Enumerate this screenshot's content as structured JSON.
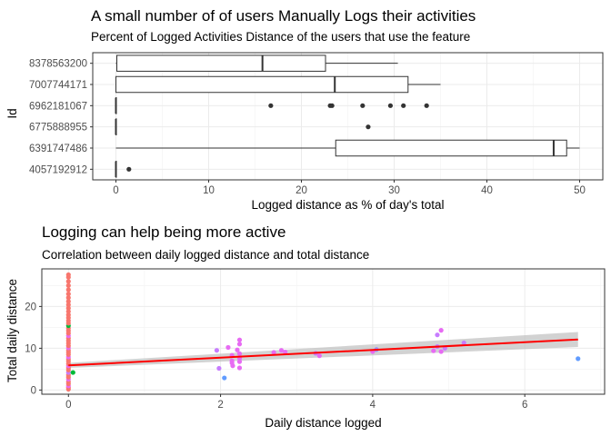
{
  "chart_data": [
    {
      "type": "boxplot",
      "orientation": "horizontal",
      "title": "A small number of of users Manually Logs their activities",
      "subtitle": "Percent of Logged Activities Distance of the users that use the feature",
      "xlabel": "Logged distance as % of day's total",
      "ylabel": "Id",
      "xlim": [
        -2.5,
        52.5
      ],
      "xticks": [
        "0",
        "10",
        "20",
        "30",
        "40",
        "50"
      ],
      "xtick_values": [
        0,
        10,
        20,
        30,
        40,
        50
      ],
      "grid": true,
      "categories": [
        "4057192912",
        "6391747486",
        "6775888955",
        "6962181067",
        "7007744171",
        "8378563200"
      ],
      "boxes": [
        {
          "id": "4057192912",
          "min": 0,
          "q1": 0,
          "median": 0,
          "q3": 0,
          "max": 0,
          "outliers": [
            1.4
          ]
        },
        {
          "id": "6391747486",
          "min": 0,
          "q1": 23.7,
          "median": 47.2,
          "q3": 48.6,
          "max": 50.0,
          "outliers": []
        },
        {
          "id": "6775888955",
          "min": 0,
          "q1": 0,
          "median": 0,
          "q3": 0,
          "max": 0,
          "outliers": [
            27.2
          ]
        },
        {
          "id": "6962181067",
          "min": 0,
          "q1": 0,
          "median": 0,
          "q3": 0,
          "max": 0,
          "outliers": [
            16.7,
            23.1,
            23.3,
            26.6,
            29.6,
            31.0,
            33.5
          ]
        },
        {
          "id": "7007744171",
          "min": 0,
          "q1": 0,
          "median": 23.6,
          "q3": 31.5,
          "max": 35.0,
          "outliers": []
        },
        {
          "id": "8378563200",
          "min": 0,
          "q1": 0.1,
          "median": 15.8,
          "q3": 22.6,
          "max": 30.4,
          "outliers": []
        }
      ]
    },
    {
      "type": "scatter",
      "title": "Logging can help being more active",
      "subtitle": "Correlation between daily logged distance and total distance",
      "xlabel": "Daily distance logged",
      "ylabel": "Total daily distance",
      "xlim": [
        -0.35,
        7.05
      ],
      "ylim": [
        -1.0,
        29.0
      ],
      "xticks": [
        "0",
        "2",
        "4",
        "6"
      ],
      "xtick_values": [
        0,
        2,
        4,
        6
      ],
      "yticks": [
        "0",
        "10",
        "20"
      ],
      "ytick_values": [
        0,
        10,
        20
      ],
      "grid": true,
      "colors": {
        "pink": "#f8766d",
        "magenta": "#e76bf3",
        "purple": "#c77cff",
        "blue": "#619cff",
        "green": "#00ba38",
        "violet": "#9c8df5"
      },
      "points": [
        {
          "x": 0,
          "y": 0.2,
          "c": "pink"
        },
        {
          "x": 0,
          "y": 0.6,
          "c": "pink"
        },
        {
          "x": 0,
          "y": 1.0,
          "c": "magenta"
        },
        {
          "x": 0,
          "y": 1.5,
          "c": "pink"
        },
        {
          "x": 0,
          "y": 2.0,
          "c": "pink"
        },
        {
          "x": 0,
          "y": 2.6,
          "c": "magenta"
        },
        {
          "x": 0,
          "y": 3.1,
          "c": "pink"
        },
        {
          "x": 0,
          "y": 3.6,
          "c": "pink"
        },
        {
          "x": 0,
          "y": 4.2,
          "c": "purple"
        },
        {
          "x": 0,
          "y": 4.8,
          "c": "pink"
        },
        {
          "x": 0,
          "y": 5.3,
          "c": "pink"
        },
        {
          "x": 0,
          "y": 5.8,
          "c": "magenta"
        },
        {
          "x": 0,
          "y": 6.3,
          "c": "pink"
        },
        {
          "x": 0,
          "y": 6.9,
          "c": "pink"
        },
        {
          "x": 0,
          "y": 7.4,
          "c": "pink"
        },
        {
          "x": 0,
          "y": 7.9,
          "c": "magenta"
        },
        {
          "x": 0,
          "y": 8.5,
          "c": "pink"
        },
        {
          "x": 0,
          "y": 9.0,
          "c": "pink"
        },
        {
          "x": 0,
          "y": 9.5,
          "c": "pink"
        },
        {
          "x": 0,
          "y": 10.1,
          "c": "magenta"
        },
        {
          "x": 0,
          "y": 10.6,
          "c": "pink"
        },
        {
          "x": 0,
          "y": 11.2,
          "c": "pink"
        },
        {
          "x": 0,
          "y": 11.8,
          "c": "pink"
        },
        {
          "x": 0,
          "y": 12.4,
          "c": "pink"
        },
        {
          "x": 0,
          "y": 13.0,
          "c": "magenta"
        },
        {
          "x": 0,
          "y": 13.6,
          "c": "pink"
        },
        {
          "x": 0,
          "y": 14.2,
          "c": "pink"
        },
        {
          "x": 0,
          "y": 14.8,
          "c": "pink"
        },
        {
          "x": 0,
          "y": 15.4,
          "c": "green"
        },
        {
          "x": 0,
          "y": 16.0,
          "c": "pink"
        },
        {
          "x": 0,
          "y": 16.6,
          "c": "pink"
        },
        {
          "x": 0,
          "y": 17.3,
          "c": "pink"
        },
        {
          "x": 0,
          "y": 18.0,
          "c": "pink"
        },
        {
          "x": 0,
          "y": 18.8,
          "c": "pink"
        },
        {
          "x": 0,
          "y": 19.6,
          "c": "pink"
        },
        {
          "x": 0,
          "y": 20.4,
          "c": "pink"
        },
        {
          "x": 0,
          "y": 21.2,
          "c": "pink"
        },
        {
          "x": 0,
          "y": 22.1,
          "c": "pink"
        },
        {
          "x": 0,
          "y": 23.0,
          "c": "pink"
        },
        {
          "x": 0,
          "y": 24.0,
          "c": "pink"
        },
        {
          "x": 0,
          "y": 25.0,
          "c": "pink"
        },
        {
          "x": 0,
          "y": 26.0,
          "c": "pink"
        },
        {
          "x": 0,
          "y": 27.0,
          "c": "pink"
        },
        {
          "x": 0,
          "y": 27.6,
          "c": "pink"
        },
        {
          "x": 0.06,
          "y": 4.2,
          "c": "green"
        },
        {
          "x": 1.95,
          "y": 9.5,
          "c": "purple"
        },
        {
          "x": 1.98,
          "y": 5.2,
          "c": "purple"
        },
        {
          "x": 2.05,
          "y": 2.9,
          "c": "blue"
        },
        {
          "x": 2.1,
          "y": 10.2,
          "c": "magenta"
        },
        {
          "x": 2.15,
          "y": 7.0,
          "c": "magenta"
        },
        {
          "x": 2.15,
          "y": 8.3,
          "c": "magenta"
        },
        {
          "x": 2.15,
          "y": 6.5,
          "c": "magenta"
        },
        {
          "x": 2.16,
          "y": 5.8,
          "c": "magenta"
        },
        {
          "x": 2.22,
          "y": 9.6,
          "c": "magenta"
        },
        {
          "x": 2.25,
          "y": 12.0,
          "c": "magenta"
        },
        {
          "x": 2.25,
          "y": 11.0,
          "c": "magenta"
        },
        {
          "x": 2.25,
          "y": 8.7,
          "c": "magenta"
        },
        {
          "x": 2.25,
          "y": 7.6,
          "c": "magenta"
        },
        {
          "x": 2.25,
          "y": 6.8,
          "c": "magenta"
        },
        {
          "x": 2.25,
          "y": 5.3,
          "c": "magenta"
        },
        {
          "x": 2.7,
          "y": 9.0,
          "c": "magenta"
        },
        {
          "x": 2.8,
          "y": 9.5,
          "c": "magenta"
        },
        {
          "x": 2.85,
          "y": 9.1,
          "c": "magenta"
        },
        {
          "x": 3.25,
          "y": 8.8,
          "c": "purple"
        },
        {
          "x": 3.3,
          "y": 8.2,
          "c": "magenta"
        },
        {
          "x": 4.0,
          "y": 9.2,
          "c": "magenta"
        },
        {
          "x": 4.05,
          "y": 9.7,
          "c": "violet"
        },
        {
          "x": 4.85,
          "y": 13.2,
          "c": "purple"
        },
        {
          "x": 4.9,
          "y": 14.3,
          "c": "magenta"
        },
        {
          "x": 4.85,
          "y": 10.4,
          "c": "purple"
        },
        {
          "x": 4.8,
          "y": 9.4,
          "c": "magenta"
        },
        {
          "x": 4.9,
          "y": 9.2,
          "c": "magenta"
        },
        {
          "x": 4.95,
          "y": 10.0,
          "c": "purple"
        },
        {
          "x": 5.2,
          "y": 11.3,
          "c": "purple"
        },
        {
          "x": 6.7,
          "y": 7.5,
          "c": "blue"
        }
      ],
      "trend": {
        "method": "lm",
        "color": "#ff0000",
        "x": [
          0,
          6.7
        ],
        "y": [
          5.9,
          12.1
        ],
        "ci_y_low": [
          5.3,
          10.3
        ],
        "ci_y_high": [
          6.5,
          13.9
        ]
      }
    }
  ]
}
